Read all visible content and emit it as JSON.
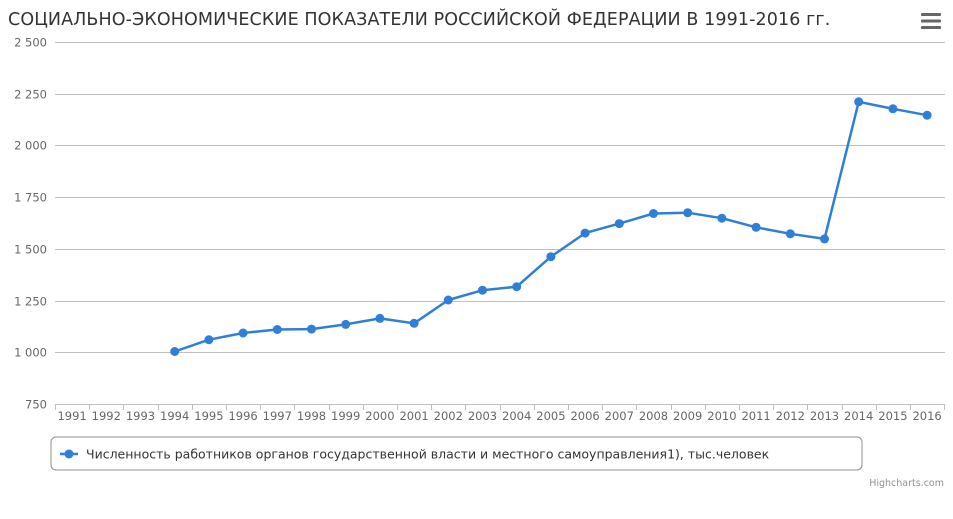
{
  "title": "СОЦИАЛЬНО-ЭКОНОМИЧЕСКИЕ ПОКАЗАТЕЛИ РОССИЙСКОЙ ФЕДЕРАЦИИ В 1991-2016 гг.",
  "credits": "Highcharts.com",
  "menu_icon": "hamburger-menu-icon",
  "colors": {
    "series": "#2f7ed8",
    "grid": "#c0c0c0",
    "axis_text": "#666666"
  },
  "chart_data": {
    "type": "line",
    "title": "СОЦИАЛЬНО-ЭКОНОМИЧЕСКИЕ ПОКАЗАТЕЛИ РОССИЙСКОЙ ФЕДЕРАЦИИ В 1991-2016 гг.",
    "categories": [
      "1991",
      "1992",
      "1993",
      "1994",
      "1995",
      "1996",
      "1997",
      "1998",
      "1999",
      "2000",
      "2001",
      "2002",
      "2003",
      "2004",
      "2005",
      "2006",
      "2007",
      "2008",
      "2009",
      "2010",
      "2011",
      "2012",
      "2013",
      "2014",
      "2015",
      "2016"
    ],
    "ylim": [
      750,
      2500
    ],
    "yticks": [
      750,
      1000,
      1250,
      1500,
      1750,
      2000,
      2250,
      2500
    ],
    "ytick_labels": [
      "750",
      "1 000",
      "1 250",
      "1 500",
      "1 750",
      "2 000",
      "2 250",
      "2 500"
    ],
    "grid": true,
    "legend_position": "bottom-left",
    "series": [
      {
        "name": "Численность работников органов государственной власти и местного самоуправления1), тыс.человек",
        "values": [
          null,
          null,
          null,
          1004,
          1061,
          1093,
          1110,
          1112,
          1135,
          1164,
          1140,
          1253,
          1300,
          1317,
          1462,
          1576,
          1622,
          1671,
          1675,
          1648,
          1604,
          1573,
          1548,
          2211,
          2177,
          2146
        ]
      }
    ]
  }
}
